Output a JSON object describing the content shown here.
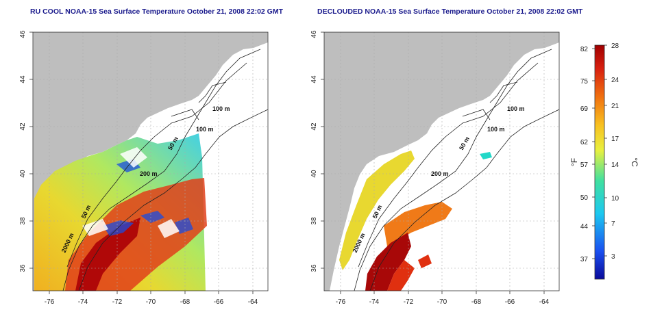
{
  "maps": [
    {
      "title": "RU COOL NOAA-15 Sea Surface Temperature October 21, 2008 22:02 GMT",
      "x_ticks": [
        "-76",
        "-74",
        "-72",
        "-70",
        "-68",
        "-66",
        "-64"
      ],
      "y_ticks": [
        "36",
        "38",
        "40",
        "42",
        "44",
        "46"
      ],
      "contour_labels": [
        "100 m",
        "100 m",
        "50 m",
        "200 m",
        "50 m",
        "2000 m"
      ]
    },
    {
      "title": "DECLOUDED NOAA-15 Sea Surface Temperature October 21, 2008 22:02 GMT",
      "x_ticks": [
        "-76",
        "-74",
        "-72",
        "-70",
        "-68",
        "-66",
        "-64"
      ],
      "y_ticks": [
        "36",
        "38",
        "40",
        "42",
        "44",
        "46"
      ],
      "contour_labels": [
        "100 m",
        "100 m",
        "50 m",
        "200 m",
        "50 m",
        "2000 m"
      ]
    }
  ],
  "colorbar": {
    "f_label": "°F",
    "c_label": "°C",
    "f_ticks": [
      "82",
      "75",
      "69",
      "62",
      "57",
      "50",
      "44",
      "37"
    ],
    "c_ticks": [
      "28",
      "24",
      "21",
      "17",
      "14",
      "10",
      "7",
      "3"
    ]
  },
  "colors": {
    "land": "#bebebe",
    "ocean_blank": "#ffffff",
    "title": "#1a1a8c",
    "hot": "#a50000",
    "warm": "#e23a10",
    "mid": "#f7c820",
    "cool": "#22cfe0",
    "cold": "#1030c8"
  }
}
